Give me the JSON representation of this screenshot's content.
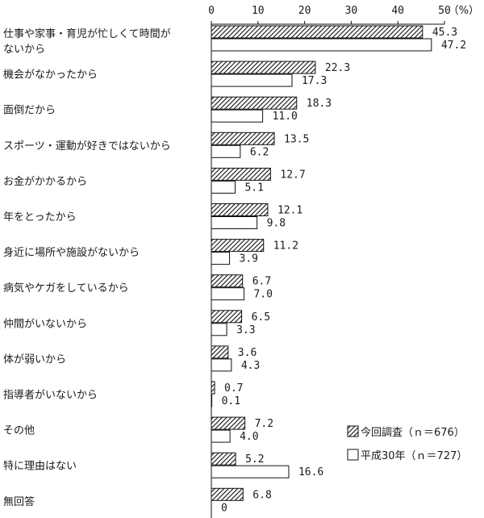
{
  "chart_data": {
    "type": "bar",
    "orientation": "horizontal",
    "unit_label": "（%）",
    "xlim": [
      0,
      50
    ],
    "xticks": [
      "0",
      "10",
      "20",
      "30",
      "40",
      "50"
    ],
    "categories": [
      [
        "仕事や家事・育児が忙しくて時間が",
        "ないから"
      ],
      [
        "機会がなかったから"
      ],
      [
        "面倒だから"
      ],
      [
        "スポーツ・運動が好きではないから"
      ],
      [
        "お金がかかるから"
      ],
      [
        "年をとったから"
      ],
      [
        "身近に場所や施設がないから"
      ],
      [
        "病気やケガをしているから"
      ],
      [
        "仲間がいないから"
      ],
      [
        "体が弱いから"
      ],
      [
        "指導者がいないから"
      ],
      [
        "その他"
      ],
      [
        "特に理由はない"
      ],
      [
        "無回答"
      ]
    ],
    "series": [
      {
        "name": "今回調査（ｎ＝676）",
        "pattern": "hatched",
        "values": [
          45.3,
          22.3,
          18.3,
          13.5,
          12.7,
          12.1,
          11.2,
          6.7,
          6.5,
          3.6,
          0.7,
          7.2,
          5.2,
          6.8
        ],
        "labels": [
          "45.3",
          "22.3",
          "18.3",
          "13.5",
          "12.7",
          "12.1",
          "11.2",
          "6.7",
          "6.5",
          "3.6",
          "0.7",
          "7.2",
          "5.2",
          "6.8"
        ]
      },
      {
        "name": "平成30年（ｎ＝727）",
        "pattern": "white",
        "values": [
          47.2,
          17.3,
          11.0,
          6.2,
          5.1,
          9.8,
          3.9,
          7.0,
          3.3,
          4.3,
          0.1,
          4.0,
          16.6,
          0
        ],
        "labels": [
          "47.2",
          "17.3",
          "11.0",
          "6.2",
          "5.1",
          "9.8",
          "3.9",
          "7.0",
          "3.3",
          "4.3",
          "0.1",
          "4.0",
          "16.6",
          "0"
        ]
      }
    ]
  }
}
